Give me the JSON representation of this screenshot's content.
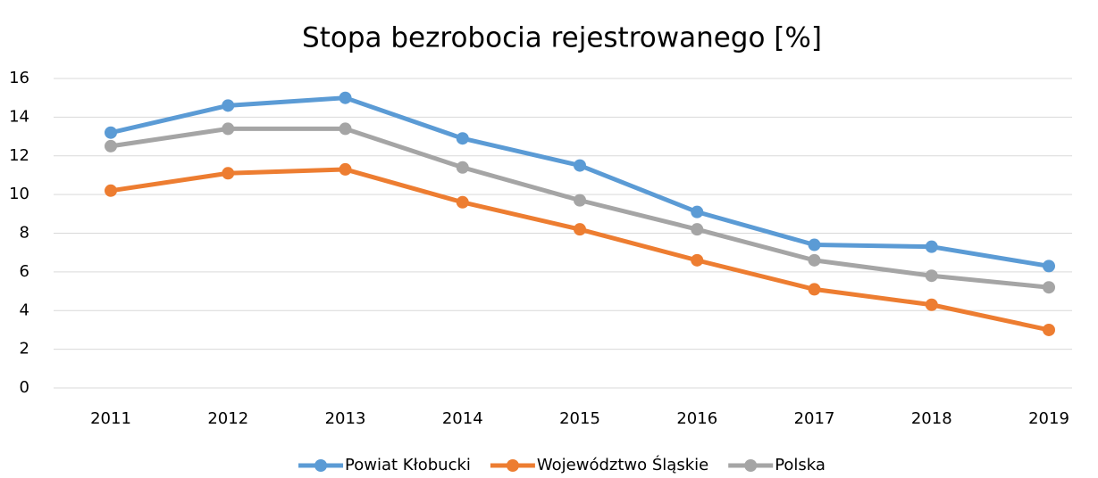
{
  "chart_data": {
    "type": "line",
    "title": "Stopa bezrobocia rejestrowanego [%]",
    "categories": [
      "2011",
      "2012",
      "2013",
      "2014",
      "2015",
      "2016",
      "2017",
      "2018",
      "2019"
    ],
    "series": [
      {
        "name": "Powiat Kłobucki",
        "color": "#5b9bd5",
        "values": [
          13.2,
          14.6,
          15.0,
          12.9,
          11.5,
          9.1,
          7.4,
          7.3,
          6.3
        ]
      },
      {
        "name": "Województwo Śląskie",
        "color": "#ed7d31",
        "values": [
          10.2,
          11.1,
          11.3,
          9.6,
          8.2,
          6.6,
          5.1,
          4.3,
          3.0
        ]
      },
      {
        "name": "Polska",
        "color": "#a5a5a5",
        "values": [
          12.5,
          13.4,
          13.4,
          11.4,
          9.7,
          8.2,
          6.6,
          5.8,
          5.2
        ]
      }
    ],
    "ylim": [
      0,
      16
    ],
    "yticks": [
      0,
      2,
      4,
      6,
      8,
      10,
      12,
      14,
      16
    ],
    "grid": true,
    "legend": "bottom"
  }
}
